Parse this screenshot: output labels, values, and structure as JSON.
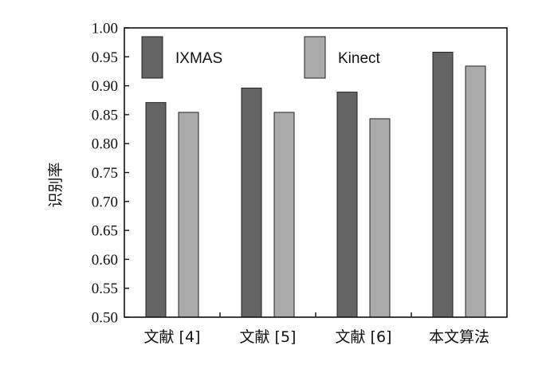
{
  "chart_data": {
    "type": "bar",
    "categories": [
      "文献 [4]",
      "文献 [5]",
      "文献 [6]",
      "本文算法"
    ],
    "series": [
      {
        "name": "IXMAS",
        "values": [
          0.871,
          0.896,
          0.889,
          0.958
        ],
        "color": "#646464"
      },
      {
        "name": "Kinect",
        "values": [
          0.854,
          0.854,
          0.843,
          0.934
        ],
        "color": "#aaaaaa"
      }
    ],
    "ylabel": "识别率",
    "xlabel": "",
    "ylim": [
      0.5,
      1.0
    ],
    "yticks": [
      "0.50",
      "0.55",
      "0.60",
      "0.65",
      "0.70",
      "0.75",
      "0.80",
      "0.85",
      "0.90",
      "0.95",
      "1.00"
    ],
    "grid": false,
    "legend_position": "top"
  }
}
